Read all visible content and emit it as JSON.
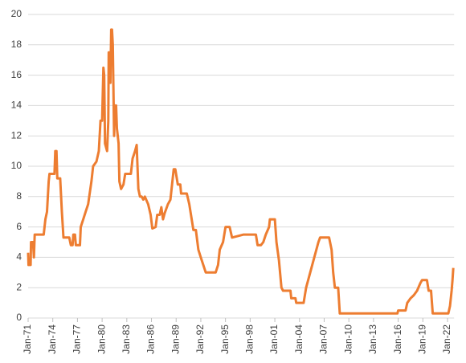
{
  "chart_data": {
    "type": "line",
    "series": [
      {
        "color": "#ed7d31",
        "x": [
          1971.0,
          1971.05,
          1971.3,
          1971.35,
          1971.6,
          1971.7,
          1971.8,
          1972.9,
          1973.1,
          1973.3,
          1973.5,
          1973.6,
          1974.2,
          1974.3,
          1974.45,
          1974.55,
          1974.9,
          1975.1,
          1975.3,
          1976.0,
          1976.2,
          1976.4,
          1976.5,
          1976.7,
          1976.8,
          1977.3,
          1977.4,
          1977.7,
          1978.0,
          1978.3,
          1978.7,
          1978.9,
          1979.3,
          1979.6,
          1979.8,
          1980.0,
          1980.15,
          1980.25,
          1980.35,
          1980.6,
          1980.75,
          1980.8,
          1980.95,
          1981.0,
          1981.1,
          1981.2,
          1981.3,
          1981.45,
          1981.55,
          1981.7,
          1981.8,
          1982.0,
          1982.1,
          1982.3,
          1982.6,
          1982.8,
          1983.5,
          1983.7,
          1984.0,
          1984.2,
          1984.4,
          1984.6,
          1984.8,
          1985.0,
          1985.2,
          1985.6,
          1985.9,
          1986.1,
          1986.5,
          1986.7,
          1987.0,
          1987.2,
          1987.4,
          1987.6,
          1988.0,
          1988.3,
          1988.7,
          1988.9,
          1989.2,
          1989.5,
          1989.6,
          1990.3,
          1990.6,
          1990.8,
          1991.1,
          1991.4,
          1991.7,
          1992.0,
          1992.3,
          1992.6,
          1993.8,
          1994.1,
          1994.3,
          1994.7,
          1995.0,
          1995.5,
          1995.8,
          1997.2,
          1998.7,
          1998.9,
          1999.3,
          1999.6,
          1999.9,
          2000.3,
          2000.4,
          2001.0,
          2001.2,
          2001.5,
          2001.8,
          2002.0,
          2002.9,
          2003.0,
          2003.5,
          2003.6,
          2004.5,
          2004.8,
          2005.3,
          2005.8,
          2006.3,
          2006.5,
          2007.6,
          2007.9,
          2008.1,
          2008.3,
          2008.7,
          2008.9,
          2015.9,
          2016.0,
          2016.9,
          2017.1,
          2017.5,
          2017.9,
          2018.3,
          2018.7,
          2018.9,
          2019.5,
          2019.7,
          2020.0,
          2020.2,
          2022.1,
          2022.3,
          2022.5,
          2022.6,
          2022.7
        ],
        "values": [
          4.3,
          3.5,
          3.5,
          5.0,
          5.0,
          4.0,
          5.5,
          5.5,
          6.5,
          7.0,
          9.0,
          9.5,
          9.5,
          11.0,
          11.0,
          9.2,
          9.2,
          7.0,
          5.3,
          5.3,
          4.8,
          4.8,
          5.5,
          5.5,
          4.8,
          4.8,
          6.0,
          6.5,
          7.0,
          7.5,
          9.0,
          10.0,
          10.3,
          11.0,
          13.0,
          13.0,
          16.5,
          16.0,
          11.5,
          11.0,
          13.0,
          17.5,
          17.5,
          15.5,
          19.0,
          19.0,
          18.0,
          12.0,
          14.0,
          14.0,
          12.5,
          11.5,
          9.0,
          8.5,
          8.8,
          9.5,
          9.5,
          10.5,
          11.0,
          11.4,
          8.5,
          8.0,
          8.0,
          7.8,
          8.0,
          7.5,
          6.8,
          5.9,
          6.0,
          6.8,
          6.8,
          7.3,
          6.5,
          6.9,
          7.5,
          7.8,
          9.8,
          9.8,
          8.8,
          8.8,
          8.2,
          8.2,
          7.5,
          6.8,
          5.8,
          5.8,
          4.5,
          4.0,
          3.5,
          3.0,
          3.0,
          3.5,
          4.5,
          5.0,
          6.0,
          6.0,
          5.3,
          5.5,
          5.5,
          4.8,
          4.8,
          5.0,
          5.5,
          6.0,
          6.5,
          6.5,
          5.0,
          3.8,
          2.0,
          1.8,
          1.8,
          1.3,
          1.3,
          1.0,
          1.0,
          2.0,
          3.0,
          4.0,
          5.0,
          5.3,
          5.3,
          4.5,
          3.0,
          2.0,
          2.0,
          0.3,
          0.3,
          0.5,
          0.5,
          1.0,
          1.3,
          1.5,
          1.8,
          2.3,
          2.5,
          2.5,
          1.8,
          1.8,
          0.3,
          0.3,
          0.8,
          1.8,
          2.5,
          3.3
        ]
      }
    ],
    "xlim": [
      1971,
      2022.8
    ],
    "xticks": [
      {
        "value": 1971,
        "label": "Jan-71"
      },
      {
        "value": 1974,
        "label": "Jan-74"
      },
      {
        "value": 1977,
        "label": "Jan-77"
      },
      {
        "value": 1980,
        "label": "Jan-80"
      },
      {
        "value": 1983,
        "label": "Jan-83"
      },
      {
        "value": 1986,
        "label": "Jan-86"
      },
      {
        "value": 1989,
        "label": "Jan-89"
      },
      {
        "value": 1992,
        "label": "Jan-92"
      },
      {
        "value": 1995,
        "label": "Jan-95"
      },
      {
        "value": 1998,
        "label": "Jan-98"
      },
      {
        "value": 2001,
        "label": "Jan-01"
      },
      {
        "value": 2004,
        "label": "Jan-04"
      },
      {
        "value": 2007,
        "label": "Jan-07"
      },
      {
        "value": 2010,
        "label": "Jan-10"
      },
      {
        "value": 2013,
        "label": "Jan-13"
      },
      {
        "value": 2016,
        "label": "Jan-16"
      },
      {
        "value": 2019,
        "label": "Jan-19"
      },
      {
        "value": 2022,
        "label": "Jan-22"
      }
    ],
    "ylim": [
      0,
      20
    ],
    "yticks": [
      0,
      2,
      4,
      6,
      8,
      10,
      12,
      14,
      16,
      18,
      20
    ],
    "grid": true
  }
}
